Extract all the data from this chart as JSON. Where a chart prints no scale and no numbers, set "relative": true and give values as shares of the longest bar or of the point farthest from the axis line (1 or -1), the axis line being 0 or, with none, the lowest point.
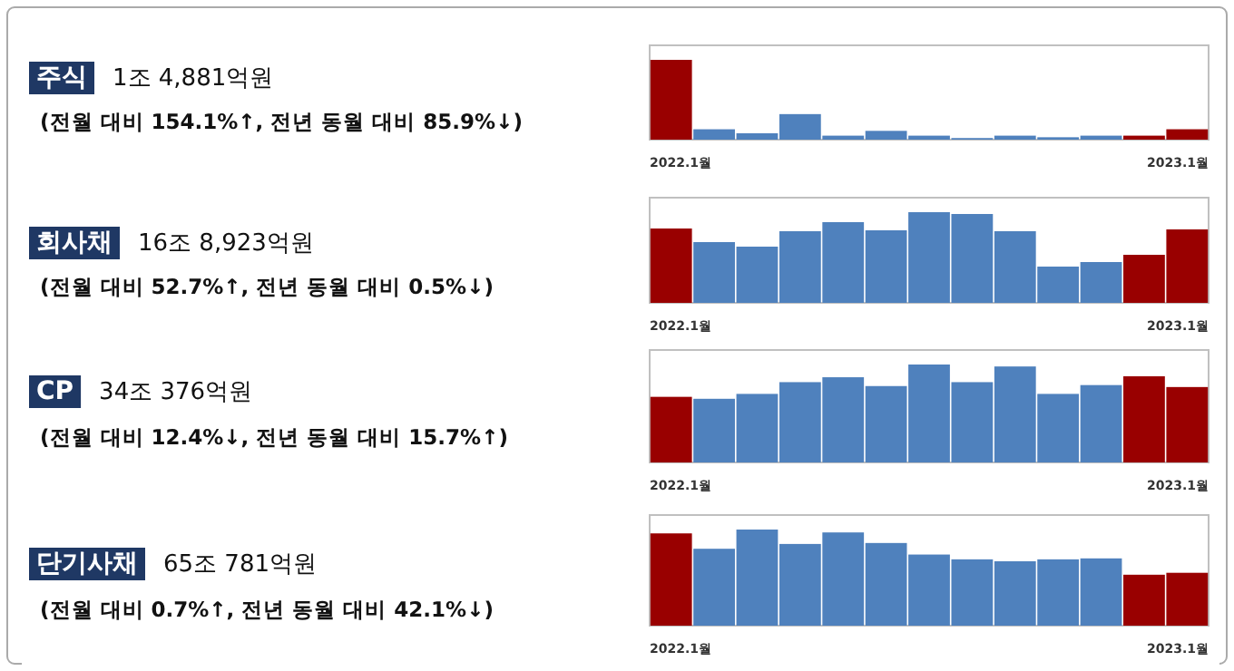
{
  "chart_data": [
    {
      "type": "bar",
      "annotations": [
        "주식",
        "1조 4,881억원",
        "(전월 대비 154.1%↑, 전년 동월 대비 85.9%↓)"
      ],
      "categories": [
        "2022.1월",
        null,
        null,
        null,
        null,
        null,
        null,
        null,
        null,
        null,
        null,
        null,
        "2023.1월"
      ],
      "relative": true,
      "values": [
        1.0,
        0.13,
        0.08,
        0.32,
        0.05,
        0.11,
        0.05,
        0.02,
        0.05,
        0.03,
        0.05,
        0.05,
        0.13
      ],
      "colors": [
        "#990000",
        "#4f81bd",
        "#4f81bd",
        "#4f81bd",
        "#4f81bd",
        "#4f81bd",
        "#4f81bd",
        "#4f81bd",
        "#4f81bd",
        "#4f81bd",
        "#4f81bd",
        "#990000",
        "#990000"
      ]
    },
    {
      "type": "bar",
      "annotations": [
        "회사채",
        "16조 8,923억원",
        "(전월 대비 52.7%↑, 전년 동월 대비 0.5%↓)"
      ],
      "categories": [
        "2022.1월",
        null,
        null,
        null,
        null,
        null,
        null,
        null,
        null,
        null,
        null,
        null,
        "2023.1월"
      ],
      "relative": true,
      "values": [
        0.82,
        0.67,
        0.62,
        0.79,
        0.89,
        0.8,
        1.0,
        0.98,
        0.79,
        0.4,
        0.45,
        0.53,
        0.81
      ],
      "colors": [
        "#990000",
        "#4f81bd",
        "#4f81bd",
        "#4f81bd",
        "#4f81bd",
        "#4f81bd",
        "#4f81bd",
        "#4f81bd",
        "#4f81bd",
        "#4f81bd",
        "#4f81bd",
        "#990000",
        "#990000"
      ]
    },
    {
      "type": "bar",
      "annotations": [
        "CP",
        "34조 376억원",
        "(전월 대비 12.4%↓, 전년 동월 대비 15.7%↑)"
      ],
      "categories": [
        "2022.1월",
        null,
        null,
        null,
        null,
        null,
        null,
        null,
        null,
        null,
        null,
        null,
        "2023.1월"
      ],
      "relative": true,
      "values": [
        0.67,
        0.65,
        0.7,
        0.82,
        0.87,
        0.78,
        1.0,
        0.82,
        0.98,
        0.7,
        0.79,
        0.88,
        0.77
      ],
      "colors": [
        "#990000",
        "#4f81bd",
        "#4f81bd",
        "#4f81bd",
        "#4f81bd",
        "#4f81bd",
        "#4f81bd",
        "#4f81bd",
        "#4f81bd",
        "#4f81bd",
        "#4f81bd",
        "#990000",
        "#990000"
      ]
    },
    {
      "type": "bar",
      "annotations": [
        "단기사채",
        "65조 781억원",
        "(전월 대비 0.7%↑, 전년 동월 대비 42.1%↓)"
      ],
      "categories": [
        "2022.1월",
        null,
        null,
        null,
        null,
        null,
        null,
        null,
        null,
        null,
        null,
        null,
        "2023.1월"
      ],
      "relative": true,
      "values": [
        0.96,
        0.8,
        1.0,
        0.85,
        0.97,
        0.86,
        0.74,
        0.69,
        0.67,
        0.69,
        0.7,
        0.53,
        0.55
      ],
      "colors": [
        "#990000",
        "#4f81bd",
        "#4f81bd",
        "#4f81bd",
        "#4f81bd",
        "#4f81bd",
        "#4f81bd",
        "#4f81bd",
        "#4f81bd",
        "#4f81bd",
        "#4f81bd",
        "#990000",
        "#990000"
      ]
    }
  ]
}
